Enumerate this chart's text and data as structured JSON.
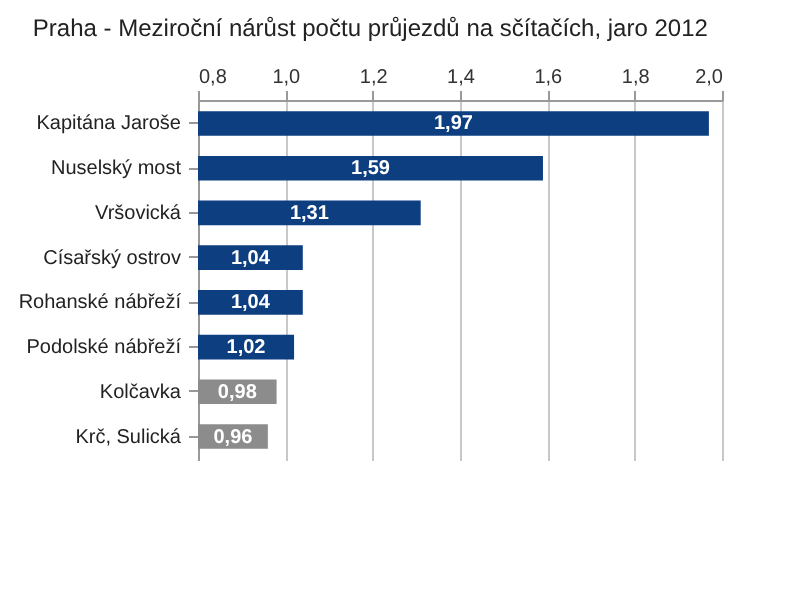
{
  "chart_data": {
    "type": "bar",
    "orientation": "horizontal",
    "title": "Praha - Meziroční nárůst počtu průjezdů na sčítačích, jaro 2012",
    "categories": [
      "Kapitána Jaroše",
      "Nuselský most",
      "Vršovická",
      "Císařský ostrov",
      "Rohanské nábřeží",
      "Podolské nábřeží",
      "Kolčavka",
      "Krč, Sulická"
    ],
    "values": [
      1.97,
      1.59,
      1.31,
      1.04,
      1.04,
      1.02,
      0.98,
      0.96
    ],
    "value_labels": [
      "1,97",
      "1,59",
      "1,31",
      "1,04",
      "1,04",
      "1,02",
      "0,98",
      "0,96"
    ],
    "colors": [
      "#0d3f80",
      "#0d3f80",
      "#0d3f80",
      "#0d3f80",
      "#0d3f80",
      "#0d3f80",
      "#8c8c8c",
      "#8c8c8c"
    ],
    "xlim": [
      0.8,
      2.0
    ],
    "xticks": [
      {
        "value": 0.8,
        "label": "0,8"
      },
      {
        "value": 1.0,
        "label": "1,0"
      },
      {
        "value": 1.2,
        "label": "1,2"
      },
      {
        "value": 1.4,
        "label": "1,4"
      },
      {
        "value": 1.6,
        "label": "1,6"
      },
      {
        "value": 1.8,
        "label": "1,8"
      },
      {
        "value": 2.0,
        "label": "2,0"
      }
    ],
    "grid": "x"
  }
}
